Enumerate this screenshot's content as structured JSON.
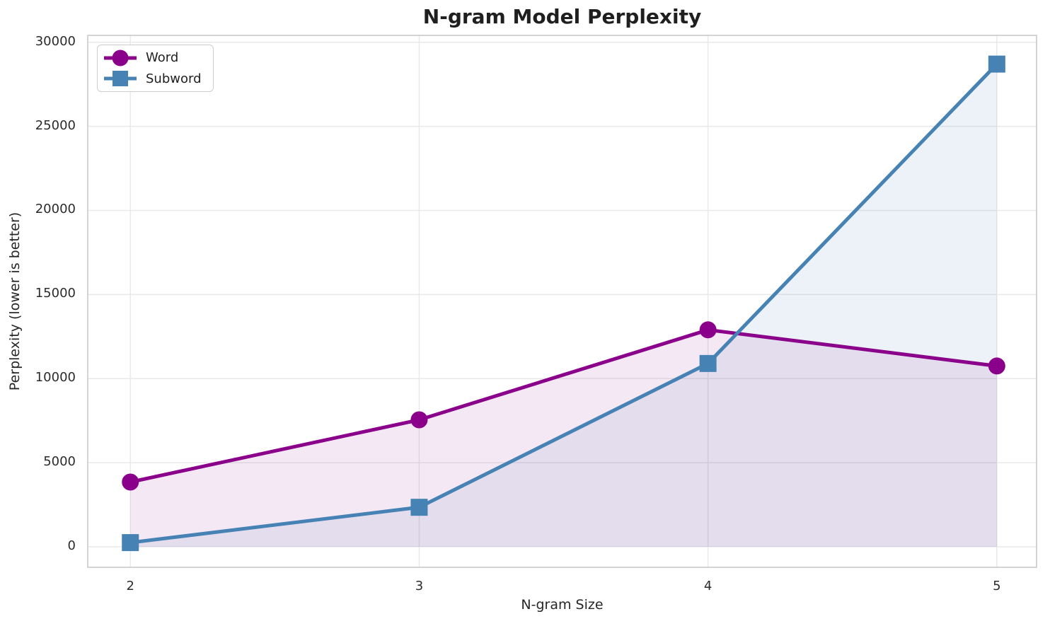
{
  "chart_data": {
    "type": "line",
    "title": "N-gram Model Perplexity",
    "xlabel": "N-gram Size",
    "ylabel": "Perplexity (lower is better)",
    "x": [
      2,
      3,
      4,
      5
    ],
    "series": [
      {
        "name": "Word",
        "values": [
          3850,
          7550,
          12900,
          10750
        ],
        "color": "#8B008B",
        "marker": "circle",
        "fill_to_zero": true
      },
      {
        "name": "Subword",
        "values": [
          250,
          2350,
          10900,
          28700
        ],
        "color": "#4682B4",
        "marker": "square",
        "fill_to_zero": true
      }
    ],
    "xticks": {
      "values": [
        2,
        3,
        4,
        5
      ],
      "labels": [
        "2",
        "3",
        "4",
        "5"
      ]
    },
    "yticks": {
      "values": [
        0,
        5000,
        10000,
        15000,
        20000,
        25000,
        30000
      ],
      "labels": [
        "0",
        "5000",
        "10000",
        "15000",
        "20000",
        "25000",
        "30000"
      ]
    },
    "xlim": [
      1.85,
      5.14
    ],
    "ylim": [
      -1260,
      30450
    ],
    "grid": true,
    "legend": {
      "position": "upper-left",
      "entries": [
        "Word",
        "Subword"
      ]
    },
    "style": {
      "fill_alpha": 0.09,
      "line_width": 5,
      "marker_size": 24,
      "grid_color": "#e9e9e9",
      "spine_color": "#cfcfcf",
      "text_color": "#262626",
      "background": "#ffffff"
    }
  }
}
